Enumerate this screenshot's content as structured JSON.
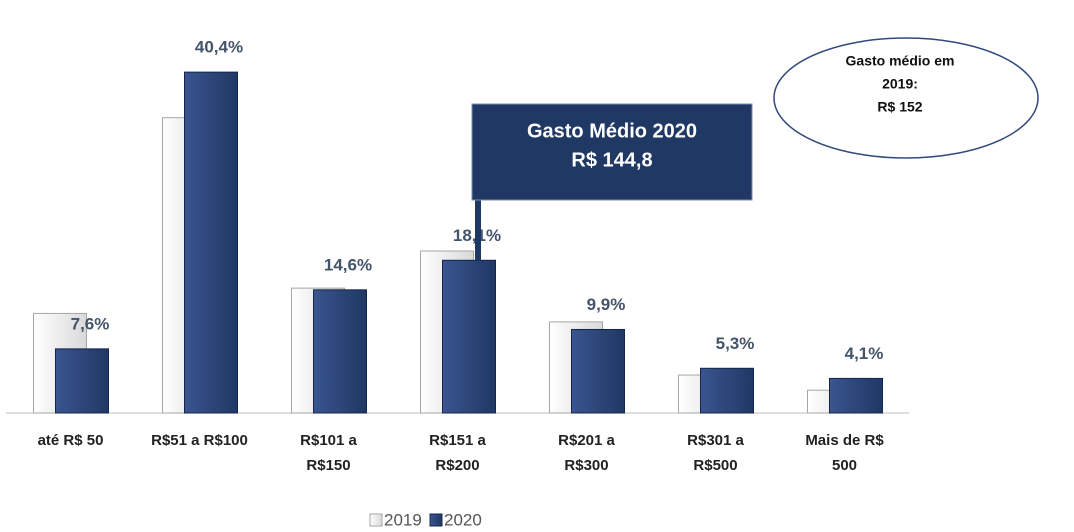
{
  "chart_data": {
    "type": "bar",
    "categories": [
      "até R$ 50",
      "R$51 a R$100",
      "R$101 a\nR$150",
      "R$151 a\nR$200",
      "R$201 a\nR$300",
      "R$301 a\nR$500",
      "Mais de R$\n500"
    ],
    "series": [
      {
        "name": "2019",
        "color": "#d9d9d9",
        "values": [
          11.8,
          35.0,
          14.8,
          19.2,
          10.8,
          4.5,
          2.7
        ]
      },
      {
        "name": "2020",
        "color": "#1f3864",
        "values": [
          7.6,
          40.4,
          14.6,
          18.1,
          9.9,
          5.3,
          4.1
        ],
        "value_labels": [
          "7,6%",
          "40,4%",
          "14,6%",
          "18,1%",
          "9,9%",
          "5,3%",
          "4,1%"
        ]
      }
    ],
    "ylim": [
      0,
      48
    ],
    "annotations": [
      {
        "lines": [
          "Gasto Médio 2020",
          "R$ 144,8"
        ]
      },
      {
        "lines": [
          "Gasto  médio em",
          "2019:",
          "R$ 152"
        ]
      }
    ],
    "legend": "bottom"
  }
}
